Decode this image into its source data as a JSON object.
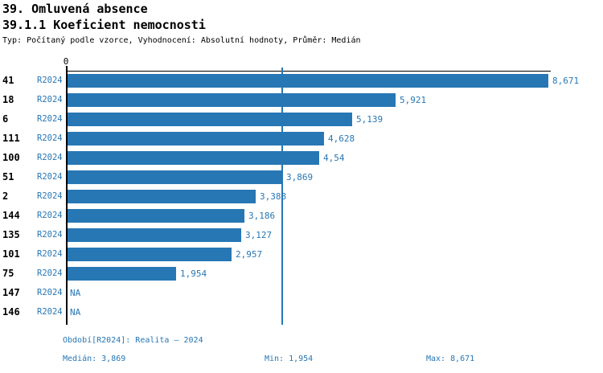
{
  "header": {
    "title": "39. Omluvená absence",
    "subtitle": "39.1.1 Koeficient nemocnosti",
    "meta": "Typ: Počítaný podle vzorce, Vyhodnocení: Absolutní hodnoty, Průměr: Medián"
  },
  "colors": {
    "accent": "#2777b4",
    "axis": "#000000",
    "background": "#ffffff"
  },
  "chart_data": {
    "type": "bar",
    "orientation": "horizontal",
    "title": "39.1.1 Koeficient nemocnosti",
    "xlabel": "",
    "ylabel": "",
    "x_zero_label": "0",
    "x_max": 8.671,
    "median": 3.869,
    "min": 1.954,
    "max": 8.671,
    "grid": false,
    "legend": false,
    "rows": [
      {
        "id": "41",
        "period": "R2024",
        "value": 8.671,
        "label": "8,671"
      },
      {
        "id": "18",
        "period": "R2024",
        "value": 5.921,
        "label": "5,921"
      },
      {
        "id": "6",
        "period": "R2024",
        "value": 5.139,
        "label": "5,139"
      },
      {
        "id": "111",
        "period": "R2024",
        "value": 4.628,
        "label": "4,628"
      },
      {
        "id": "100",
        "period": "R2024",
        "value": 4.54,
        "label": "4,54"
      },
      {
        "id": "51",
        "period": "R2024",
        "value": 3.869,
        "label": "3,869"
      },
      {
        "id": "2",
        "period": "R2024",
        "value": 3.388,
        "label": "3,388"
      },
      {
        "id": "144",
        "period": "R2024",
        "value": 3.186,
        "label": "3,186"
      },
      {
        "id": "135",
        "period": "R2024",
        "value": 3.127,
        "label": "3,127"
      },
      {
        "id": "101",
        "period": "R2024",
        "value": 2.957,
        "label": "2,957"
      },
      {
        "id": "75",
        "period": "R2024",
        "value": 1.954,
        "label": "1,954"
      },
      {
        "id": "147",
        "period": "R2024",
        "value": null,
        "label": "NA"
      },
      {
        "id": "146",
        "period": "R2024",
        "value": null,
        "label": "NA"
      }
    ]
  },
  "footer": {
    "period_line": "Období[R2024]: Realita – 2024",
    "median": "Medián: 3,869",
    "min": "Min: 1,954",
    "max": "Max: 8,671"
  }
}
